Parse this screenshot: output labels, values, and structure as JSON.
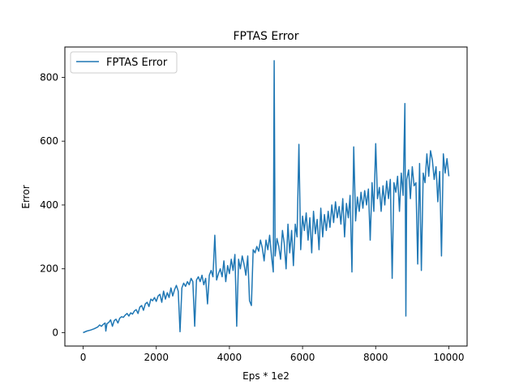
{
  "chart_data": {
    "type": "line",
    "title": "FPTAS Error",
    "xlabel": "Eps * 1e2",
    "ylabel": "Error",
    "xlim": [
      -500,
      10500
    ],
    "ylim": [
      -42,
      895
    ],
    "xticks": [
      0,
      2000,
      4000,
      6000,
      8000,
      10000
    ],
    "yticks": [
      0,
      200,
      400,
      600,
      800
    ],
    "xtick_labels": [
      "0",
      "2000",
      "4000",
      "6000",
      "8000",
      "10000"
    ],
    "ytick_labels": [
      "0",
      "200",
      "400",
      "600",
      "800"
    ],
    "grid": false,
    "legend": "upper-left",
    "series": [
      {
        "name": "FPTAS Error",
        "color": "#1f77b4",
        "points": [
          [
            0,
            0
          ],
          [
            100,
            5
          ],
          [
            200,
            8
          ],
          [
            300,
            12
          ],
          [
            400,
            18
          ],
          [
            450,
            24
          ],
          [
            500,
            20
          ],
          [
            550,
            26
          ],
          [
            600,
            30
          ],
          [
            620,
            5
          ],
          [
            650,
            28
          ],
          [
            700,
            32
          ],
          [
            750,
            40
          ],
          [
            800,
            20
          ],
          [
            850,
            38
          ],
          [
            900,
            42
          ],
          [
            950,
            30
          ],
          [
            1000,
            45
          ],
          [
            1050,
            50
          ],
          [
            1100,
            48
          ],
          [
            1150,
            55
          ],
          [
            1200,
            60
          ],
          [
            1250,
            52
          ],
          [
            1300,
            62
          ],
          [
            1350,
            58
          ],
          [
            1400,
            68
          ],
          [
            1450,
            72
          ],
          [
            1500,
            60
          ],
          [
            1550,
            80
          ],
          [
            1600,
            85
          ],
          [
            1650,
            70
          ],
          [
            1700,
            90
          ],
          [
            1750,
            95
          ],
          [
            1800,
            82
          ],
          [
            1850,
            105
          ],
          [
            1900,
            100
          ],
          [
            1950,
            110
          ],
          [
            2000,
            98
          ],
          [
            2050,
            115
          ],
          [
            2100,
            120
          ],
          [
            2150,
            95
          ],
          [
            2200,
            130
          ],
          [
            2250,
            105
          ],
          [
            2300,
            125
          ],
          [
            2350,
            110
          ],
          [
            2400,
            140
          ],
          [
            2450,
            115
          ],
          [
            2500,
            135
          ],
          [
            2550,
            148
          ],
          [
            2600,
            130
          ],
          [
            2650,
            3
          ],
          [
            2700,
            140
          ],
          [
            2750,
            155
          ],
          [
            2800,
            145
          ],
          [
            2850,
            160
          ],
          [
            2900,
            150
          ],
          [
            2950,
            170
          ],
          [
            3000,
            160
          ],
          [
            3050,
            20
          ],
          [
            3100,
            165
          ],
          [
            3150,
            175
          ],
          [
            3200,
            160
          ],
          [
            3250,
            180
          ],
          [
            3300,
            150
          ],
          [
            3350,
            170
          ],
          [
            3400,
            90
          ],
          [
            3450,
            180
          ],
          [
            3500,
            195
          ],
          [
            3550,
            175
          ],
          [
            3600,
            305
          ],
          [
            3650,
            165
          ],
          [
            3700,
            185
          ],
          [
            3750,
            200
          ],
          [
            3800,
            175
          ],
          [
            3850,
            225
          ],
          [
            3900,
            160
          ],
          [
            3950,
            210
          ],
          [
            4000,
            185
          ],
          [
            4050,
            230
          ],
          [
            4100,
            195
          ],
          [
            4150,
            245
          ],
          [
            4200,
            20
          ],
          [
            4250,
            230
          ],
          [
            4300,
            200
          ],
          [
            4350,
            240
          ],
          [
            4400,
            215
          ],
          [
            4450,
            180
          ],
          [
            4500,
            240
          ],
          [
            4550,
            100
          ],
          [
            4600,
            85
          ],
          [
            4650,
            260
          ],
          [
            4700,
            250
          ],
          [
            4750,
            270
          ],
          [
            4800,
            255
          ],
          [
            4850,
            290
          ],
          [
            4900,
            265
          ],
          [
            4950,
            225
          ],
          [
            5000,
            290
          ],
          [
            5050,
            260
          ],
          [
            5100,
            305
          ],
          [
            5150,
            240
          ],
          [
            5200,
            190
          ],
          [
            5225,
            852
          ],
          [
            5250,
            240
          ],
          [
            5300,
            295
          ],
          [
            5350,
            270
          ],
          [
            5400,
            230
          ],
          [
            5450,
            320
          ],
          [
            5500,
            280
          ],
          [
            5550,
            200
          ],
          [
            5600,
            340
          ],
          [
            5650,
            250
          ],
          [
            5700,
            320
          ],
          [
            5750,
            210
          ],
          [
            5800,
            340
          ],
          [
            5850,
            300
          ],
          [
            5900,
            590
          ],
          [
            5950,
            260
          ],
          [
            6000,
            365
          ],
          [
            6050,
            320
          ],
          [
            6100,
            375
          ],
          [
            6150,
            290
          ],
          [
            6200,
            360
          ],
          [
            6250,
            250
          ],
          [
            6300,
            380
          ],
          [
            6350,
            310
          ],
          [
            6400,
            355
          ],
          [
            6450,
            260
          ],
          [
            6500,
            390
          ],
          [
            6550,
            300
          ],
          [
            6600,
            370
          ],
          [
            6650,
            320
          ],
          [
            6700,
            380
          ],
          [
            6750,
            330
          ],
          [
            6800,
            400
          ],
          [
            6850,
            345
          ],
          [
            6900,
            410
          ],
          [
            6950,
            360
          ],
          [
            7000,
            395
          ],
          [
            7050,
            340
          ],
          [
            7100,
            420
          ],
          [
            7150,
            300
          ],
          [
            7200,
            405
          ],
          [
            7250,
            360
          ],
          [
            7300,
            430
          ],
          [
            7350,
            190
          ],
          [
            7400,
            582
          ],
          [
            7450,
            350
          ],
          [
            7500,
            425
          ],
          [
            7550,
            380
          ],
          [
            7600,
            440
          ],
          [
            7650,
            390
          ],
          [
            7700,
            445
          ],
          [
            7750,
            400
          ],
          [
            7800,
            450
          ],
          [
            7850,
            290
          ],
          [
            7900,
            470
          ],
          [
            7950,
            380
          ],
          [
            8000,
            592
          ],
          [
            8050,
            420
          ],
          [
            8100,
            455
          ],
          [
            8150,
            380
          ],
          [
            8200,
            460
          ],
          [
            8250,
            400
          ],
          [
            8300,
            475
          ],
          [
            8350,
            420
          ],
          [
            8400,
            480
          ],
          [
            8450,
            170
          ],
          [
            8500,
            470
          ],
          [
            8550,
            440
          ],
          [
            8600,
            490
          ],
          [
            8650,
            380
          ],
          [
            8700,
            500
          ],
          [
            8750,
            430
          ],
          [
            8800,
            718
          ],
          [
            8825,
            52
          ],
          [
            8850,
            480
          ],
          [
            8900,
            510
          ],
          [
            8950,
            420
          ],
          [
            9000,
            520
          ],
          [
            9050,
            460
          ],
          [
            9100,
            470
          ],
          [
            9150,
            215
          ],
          [
            9200,
            530
          ],
          [
            9250,
            195
          ],
          [
            9300,
            500
          ],
          [
            9350,
            470
          ],
          [
            9400,
            560
          ],
          [
            9450,
            490
          ],
          [
            9500,
            570
          ],
          [
            9550,
            540
          ],
          [
            9600,
            480
          ],
          [
            9650,
            520
          ],
          [
            9700,
            410
          ],
          [
            9750,
            505
          ],
          [
            9800,
            240
          ],
          [
            9850,
            560
          ],
          [
            9900,
            500
          ],
          [
            9950,
            545
          ],
          [
            10000,
            490
          ]
        ]
      }
    ]
  }
}
